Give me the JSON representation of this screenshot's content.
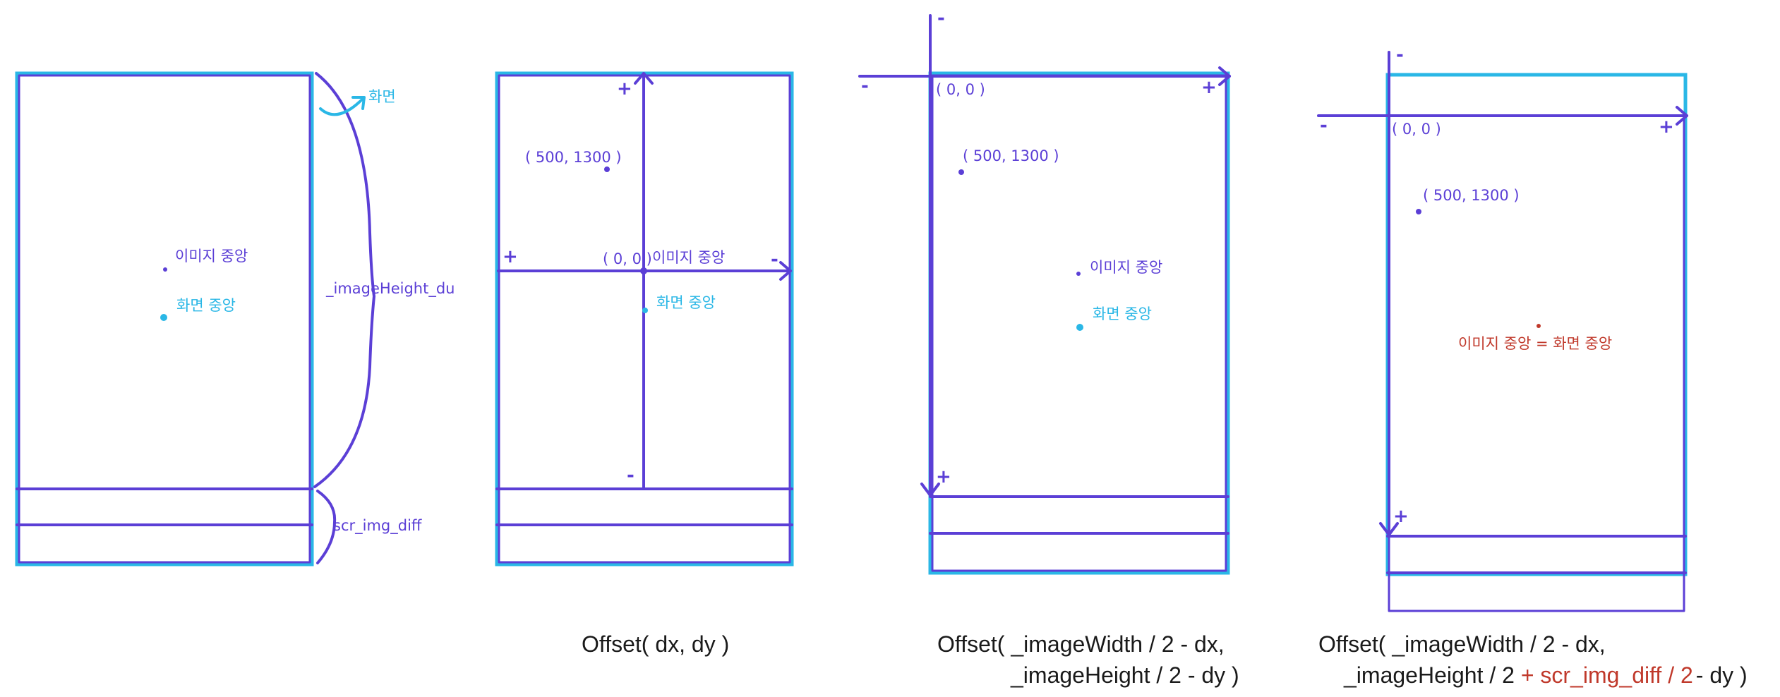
{
  "labels": {
    "image_center": "이미지 중앙",
    "screen_center": "화면 중앙",
    "screen": "화면",
    "image_height": "_imageHeight_du",
    "scr_img_diff": "scr_img_diff",
    "origin": "( 0, 0 )",
    "point": "( 500, 1300 )",
    "combined_center": "이미지 중앙 = 화면 중앙",
    "plus": "+",
    "minus": "-"
  },
  "captions": {
    "p2": "Offset( dx, dy )",
    "p3_line1": "Offset( _imageWidth / 2 - dx,",
    "p3_line2": "_imageHeight / 2 - dy )",
    "p4_line1": "Offset( _imageWidth / 2 - dx,",
    "p4_line2_a": "_imageHeight / 2 ",
    "p4_line2_b": "+ scr_img_diff / 2",
    "p4_line2_c": " - dy )"
  },
  "colors": {
    "pen": "#5b3fd6",
    "screen_frame": "#2ab7e6",
    "highlight": "#c0392b"
  }
}
